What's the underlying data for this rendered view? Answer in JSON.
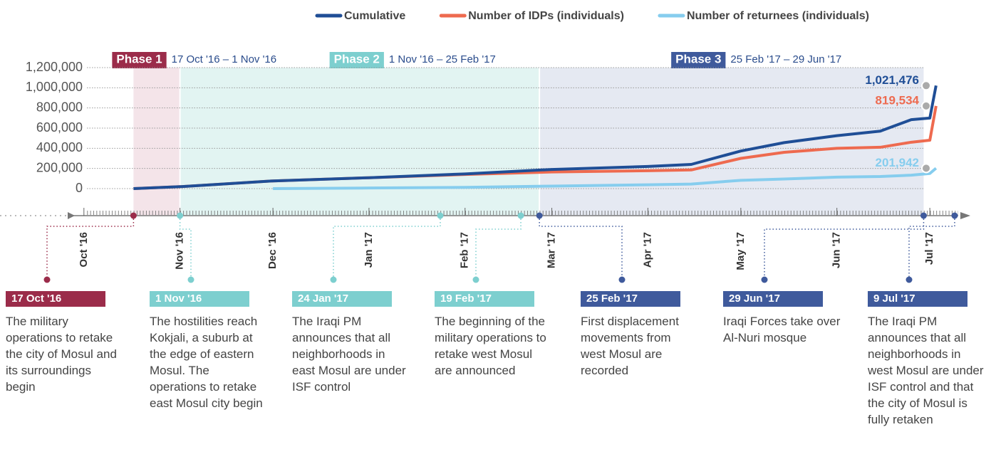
{
  "chart_data": {
    "type": "line",
    "x": [
      "2016-10-17",
      "2016-11-01",
      "2016-12-01",
      "2017-01-01",
      "2017-02-01",
      "2017-03-01",
      "2017-04-01",
      "2017-04-15",
      "2017-05-01",
      "2017-05-15",
      "2017-06-01",
      "2017-06-15",
      "2017-06-25",
      "2017-07-01",
      "2017-07-03"
    ],
    "series": [
      {
        "name": "Cumulative",
        "color": "#1f4e96",
        "values": [
          0,
          19000,
          76000,
          108000,
          146000,
          190000,
          220000,
          240000,
          373000,
          456000,
          525000,
          570000,
          684000,
          700000,
          1021476
        ],
        "value_labels": [
          null,
          null,
          null,
          null,
          null,
          null,
          null,
          null,
          null,
          null,
          null,
          null,
          null,
          null,
          "1,021,476"
        ]
      },
      {
        "name": "Number of IDPs (individuals)",
        "color": "#ee6a4f",
        "values": [
          0,
          19000,
          76000,
          108000,
          140000,
          165000,
          177000,
          185000,
          300000,
          360000,
          400000,
          410000,
          460000,
          480000,
          819534
        ],
        "value_labels": [
          null,
          null,
          null,
          null,
          null,
          null,
          null,
          null,
          null,
          null,
          null,
          null,
          null,
          null,
          "819,534"
        ]
      },
      {
        "name": "Number of returnees (individuals)",
        "color": "#86cdee",
        "values": [
          null,
          null,
          0,
          6000,
          12000,
          25000,
          38000,
          45000,
          82000,
          95000,
          114000,
          120000,
          133000,
          150000,
          201942
        ],
        "value_labels": [
          null,
          null,
          null,
          null,
          null,
          null,
          null,
          null,
          null,
          null,
          null,
          null,
          null,
          null,
          "201,942"
        ]
      }
    ],
    "ylim": [
      0,
      1200000
    ],
    "yticks": [
      0,
      {
        "value": 200000,
        "label": "200,000"
      },
      {
        "value": 400000,
        "label": "400,000"
      },
      {
        "value": 600000,
        "label": "600,000"
      },
      {
        "value": 800000,
        "label": "800,000"
      },
      {
        "value": 1000000,
        "label": "1,000,000"
      },
      {
        "value": 1200000,
        "label": "1,200,000"
      }
    ],
    "xlim": [
      "2016-09-23",
      "2017-07-12"
    ],
    "xticks": [
      {
        "value": "2016-10-01",
        "label": "Oct '16"
      },
      {
        "value": "2016-11-01",
        "label": "Nov '16"
      },
      {
        "value": "2016-12-01",
        "label": "Dec '16"
      },
      {
        "value": "2017-01-01",
        "label": "Jan '17"
      },
      {
        "value": "2017-02-01",
        "label": "Feb '17"
      },
      {
        "value": "2017-03-01",
        "label": "Mar '17"
      },
      {
        "value": "2017-04-01",
        "label": "Apr '17"
      },
      {
        "value": "2017-05-01",
        "label": "May '17"
      },
      {
        "value": "2017-06-01",
        "label": "Jun '17"
      },
      {
        "value": "2017-07-01",
        "label": "Jul '17"
      }
    ],
    "grid": true,
    "phases": [
      {
        "name": "Phase 1",
        "range": "17 Oct '16 – 1 Nov '16",
        "start": "2016-10-17",
        "end": "2016-11-01",
        "color": "#9b2c4a",
        "band": "#f4e4e9"
      },
      {
        "name": "Phase 2",
        "range": "1 Nov '16 – 25 Feb '17",
        "start": "2016-11-01",
        "end": "2017-02-25",
        "color": "#7dcfcf",
        "band": "#e2f4f2"
      },
      {
        "name": "Phase 3",
        "range": "25 Feb '17 – 29 Jun '17",
        "start": "2017-02-25",
        "end": "2017-06-29",
        "color": "#3f5a9c",
        "band": "#e5e9f2"
      }
    ],
    "events": [
      {
        "label": "17 Oct '16",
        "date": "2016-10-17",
        "color": "#9b2c4a",
        "text": "The military operations to retake the city of Mosul and its surroundings begin"
      },
      {
        "label": "1 Nov '16",
        "date": "2016-11-01",
        "color": "#7dcfcf",
        "text": "The hostilities reach Kokjali, a suburb at the edge of eastern Mosul. The operations to retake east Mosul city begin"
      },
      {
        "label": "24 Jan '17",
        "date": "2017-01-24",
        "color": "#7dcfcf",
        "text": "The Iraqi PM announces that all neighborhoods in east Mosul are under ISF control"
      },
      {
        "label": "19 Feb '17",
        "date": "2017-02-19",
        "color": "#7dcfcf",
        "text": "The beginning of the military operations to retake west Mosul are announced"
      },
      {
        "label": "25 Feb '17",
        "date": "2017-02-25",
        "color": "#3f5a9c",
        "text": "First displacement movements from west Mosul are recorded"
      },
      {
        "label": "29 Jun '17",
        "date": "2017-06-29",
        "color": "#3f5a9c",
        "text": "Iraqi Forces take over Al-Nuri mosque"
      },
      {
        "label": "9 Jul '17",
        "date": "2017-07-09",
        "color": "#3f5a9c",
        "text": "The Iraqi PM announces that all neighborhoods in west Mosul are under ISF control and that the city of Mosul is fully retaken"
      }
    ]
  }
}
